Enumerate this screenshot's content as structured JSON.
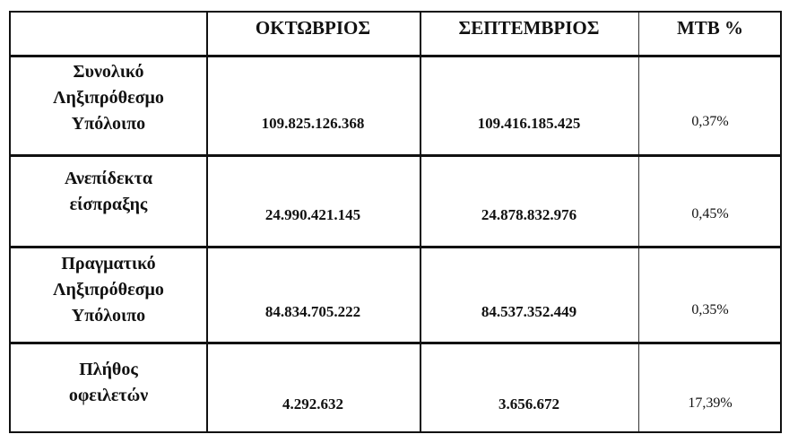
{
  "table": {
    "headers": [
      "",
      "ΟΚΤΩΒΡΙΟΣ",
      "ΣΕΠΤΕΜΒΡΙΟΣ",
      "ΜΤΒ %"
    ],
    "rows": [
      {
        "label_lines": [
          "Συνολικό",
          "Ληξιπρόθεσμο",
          "Υπόλοιπο"
        ],
        "october": "109.825.126.368",
        "september": "109.416.185.425",
        "mtb": "0,37%"
      },
      {
        "label_lines": [
          "Ανεπίδεκτα",
          "είσπραξης"
        ],
        "october": "24.990.421.145",
        "september": "24.878.832.976",
        "mtb": "0,45%"
      },
      {
        "label_lines": [
          "Πραγματικό",
          "Ληξιπρόθεσμο",
          "Υπόλοιπο"
        ],
        "october": "84.834.705.222",
        "september": "84.537.352.449",
        "mtb": "0,35%"
      },
      {
        "label_lines": [
          "Πλήθος",
          "οφειλετών"
        ],
        "october": "4.292.632",
        "september": "3.656.672",
        "mtb": "17,39%"
      }
    ]
  }
}
